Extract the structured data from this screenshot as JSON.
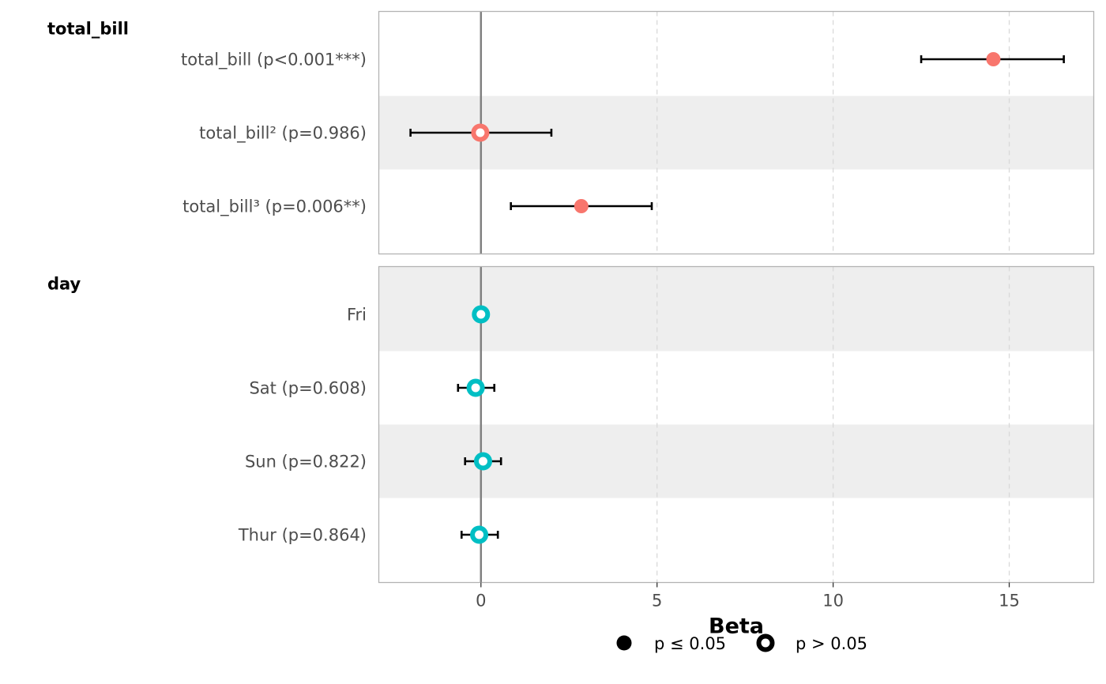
{
  "chart_data": {
    "type": "scatter",
    "subtype": "forest-plot",
    "xlabel": "Beta",
    "xlim": [
      -2.9,
      17.4
    ],
    "x_ticks": [
      0,
      5,
      10,
      15
    ],
    "x_tick_labels": [
      "0",
      "5",
      "10",
      "15"
    ],
    "reference_line": 0,
    "grid": "dashed vertical lines at x ticks",
    "legend_position": "bottom",
    "colors": {
      "total_bill": "#F8766D",
      "day": "#00BFC4",
      "reference_line": "#808080",
      "stripe": "#eeeeee",
      "panel_border": "#b3b3b3",
      "error_bar": "#000000"
    },
    "groups": [
      {
        "name": "total_bill",
        "color": "#F8766D",
        "rows": [
          {
            "label": "total_bill (p<0.001***)",
            "estimate": 14.55,
            "ci_low": 12.5,
            "ci_high": 16.55,
            "significant": true
          },
          {
            "label": "total_bill² (p=0.986)",
            "estimate": -0.02,
            "ci_low": -2.0,
            "ci_high": 2.0,
            "significant": false
          },
          {
            "label": "total_bill³ (p=0.006**)",
            "estimate": 2.85,
            "ci_low": 0.85,
            "ci_high": 4.85,
            "significant": true
          }
        ]
      },
      {
        "name": "day",
        "color": "#00BFC4",
        "rows": [
          {
            "label": "Fri",
            "estimate": 0.0,
            "ci_low": null,
            "ci_high": null,
            "significant": false
          },
          {
            "label": "Sat (p=0.608)",
            "estimate": -0.15,
            "ci_low": -0.65,
            "ci_high": 0.38,
            "significant": false
          },
          {
            "label": "Sun (p=0.822)",
            "estimate": 0.06,
            "ci_low": -0.45,
            "ci_high": 0.57,
            "significant": false
          },
          {
            "label": "Thur (p=0.864)",
            "estimate": -0.05,
            "ci_low": -0.55,
            "ci_high": 0.48,
            "significant": false
          }
        ]
      }
    ],
    "legend": [
      {
        "label": "p ≤ 0.05",
        "marker": "filled"
      },
      {
        "label": "p > 0.05",
        "marker": "hollow"
      }
    ]
  }
}
